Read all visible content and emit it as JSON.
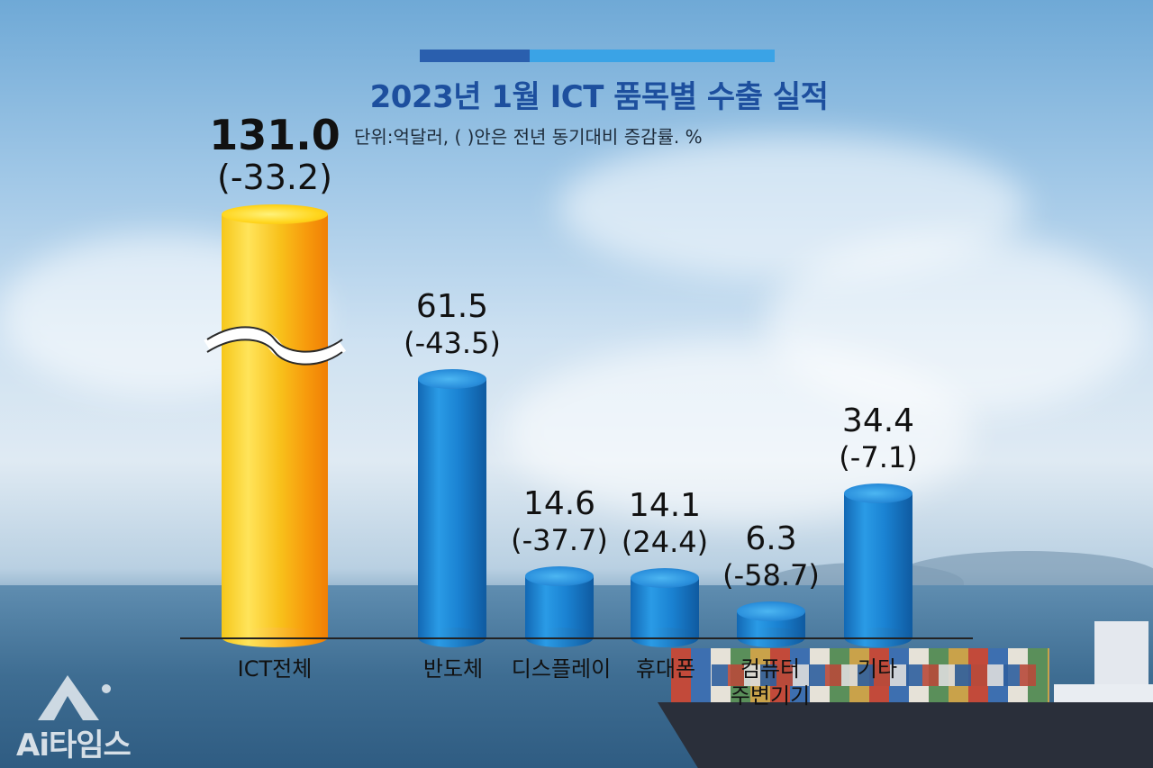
{
  "title": "2023년 1월 ICT 품목별 수출 실적",
  "subtitle": "단위:억달러, ( )안은 전년 동기대비 증감률. %",
  "colors": {
    "title": "#1d4f9e",
    "bar_blue": "#1f86d6",
    "bar_gold": "#f7b514",
    "bar_top_dark": "#2a5fae",
    "bar_top_light": "#3aa3e6"
  },
  "chart_data": {
    "type": "bar",
    "style": "cylinder",
    "title": "2023년 1월 ICT 품목별 수출 실적",
    "subtitle": "단위:억달러, ( )안은 전년 동기대비 증감률. %",
    "categories": [
      "ICT전체",
      "반도체",
      "디스플레이",
      "휴대폰",
      "컴퓨터\n주변기기",
      "기타"
    ],
    "values": [
      131.0,
      61.5,
      14.6,
      14.1,
      6.3,
      34.4
    ],
    "value_labels": [
      "131.0",
      "61.5",
      "14.6",
      "14.1",
      "6.3",
      "34.4"
    ],
    "change_labels": [
      "(-33.2)",
      "(-43.5)",
      "(-37.7)",
      "(24.4)",
      "(-58.7)",
      "(-7.1)"
    ],
    "changes_pct": [
      -33.2,
      -43.5,
      -37.7,
      24.4,
      -58.7,
      -7.1
    ],
    "axis_break_on_first": true,
    "highlight_first": true,
    "grid": false
  },
  "labels": {
    "cat0": "ICT전체",
    "cat1": "반도체",
    "cat2": "디스플레이",
    "cat3": "휴대폰",
    "cat4_line1": "컴퓨터",
    "cat4_line2": "주변기기",
    "cat5": "기타"
  },
  "logo": {
    "text": "Ai타임스"
  }
}
